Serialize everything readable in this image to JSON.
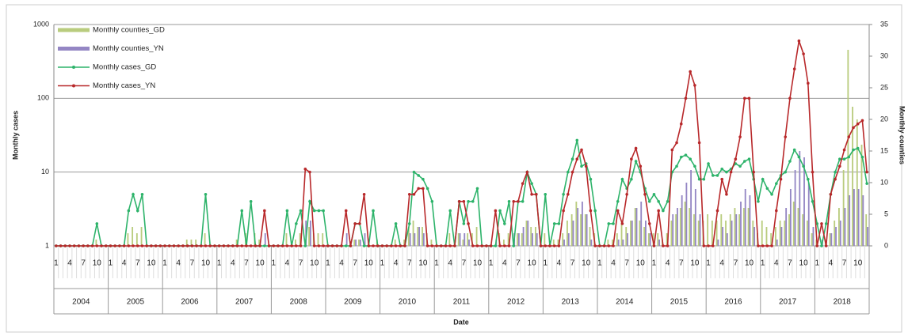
{
  "chart_data": {
    "type": "bar_line_combo",
    "x_label": "Date",
    "y_label": "Monthly cases",
    "y2_label": "Monthly counties",
    "y_scale": "log",
    "ylim": [
      1,
      1000
    ],
    "yticks": [
      1,
      10,
      100,
      1000
    ],
    "y2lim": [
      0,
      35
    ],
    "y2ticks": [
      0,
      5,
      10,
      15,
      20,
      25,
      30,
      35
    ],
    "grid": true,
    "legend": "upper left",
    "years": [
      "2004",
      "2005",
      "2006",
      "2007",
      "2008",
      "2009",
      "2010",
      "2011",
      "2012",
      "2013",
      "2014",
      "2015",
      "2016",
      "2017",
      "2018"
    ],
    "categories": [
      "1",
      null,
      null,
      "4",
      null,
      null,
      "7",
      null,
      null,
      "10",
      null,
      null,
      "1",
      null,
      null,
      "4",
      null,
      null,
      "7",
      null,
      null,
      "10",
      null,
      null,
      "1",
      null,
      null,
      "4",
      null,
      null,
      "7",
      null,
      null,
      "10",
      null,
      null,
      "1",
      null,
      null,
      "4",
      null,
      null,
      "7",
      null,
      null,
      "10",
      null,
      null,
      "1",
      null,
      null,
      "4",
      null,
      null,
      "7",
      null,
      null,
      "10",
      null,
      null,
      "1",
      null,
      null,
      "4",
      null,
      null,
      "7",
      null,
      null,
      "10",
      null,
      null,
      "1",
      null,
      null,
      "4",
      null,
      null,
      "7",
      null,
      null,
      "10",
      null,
      null,
      "1",
      null,
      null,
      "4",
      null,
      null,
      "7",
      null,
      null,
      "10",
      null,
      null,
      "1",
      null,
      null,
      "4",
      null,
      null,
      "7",
      null,
      null,
      "10",
      null,
      null,
      "1",
      null,
      null,
      "4",
      null,
      null,
      "7",
      null,
      null,
      "10",
      null,
      null,
      "1",
      null,
      null,
      "4",
      null,
      null,
      "7",
      null,
      null,
      "10",
      null,
      null,
      "1",
      null,
      null,
      "4",
      null,
      null,
      "7",
      null,
      null,
      "10",
      null,
      null,
      "1",
      null,
      null,
      "4",
      null,
      null,
      "7",
      null,
      null,
      "10",
      null,
      null,
      "1",
      null,
      null,
      "4",
      null,
      null,
      "7",
      null,
      null,
      "10",
      null,
      null,
      "1",
      null,
      null,
      "4",
      null,
      null,
      "7",
      null,
      null,
      "10",
      null,
      null
    ],
    "series": [
      {
        "name": "Monthly counties_GD",
        "kind": "bar",
        "axis": "y2",
        "color": "#b9cc7e",
        "values": [
          0,
          0,
          0,
          0,
          0,
          0,
          0,
          0,
          0,
          1,
          0,
          0,
          0,
          0,
          0,
          0,
          2,
          3,
          2,
          3,
          0,
          0,
          0,
          0,
          0,
          0,
          0,
          0,
          0,
          1,
          1,
          1,
          0,
          2,
          0,
          0,
          0,
          0,
          0,
          0,
          1,
          0,
          2,
          0,
          2,
          1,
          0,
          0,
          0,
          0,
          0,
          2,
          0,
          1,
          2,
          0,
          3,
          2,
          2,
          2,
          0,
          0,
          0,
          0,
          0,
          0,
          1,
          1,
          0,
          0,
          0,
          1,
          0,
          0,
          0,
          1,
          0,
          1,
          3,
          4,
          3,
          3,
          2,
          1,
          0,
          0,
          0,
          2,
          0,
          2,
          1,
          2,
          2,
          3,
          0,
          0,
          0,
          0,
          2,
          1,
          2,
          0,
          2,
          2,
          4,
          3,
          3,
          0,
          2,
          0,
          1,
          1,
          2,
          4,
          5,
          7,
          5,
          5,
          3,
          2,
          0,
          0,
          1,
          1,
          2,
          4,
          3,
          4,
          6,
          4,
          3,
          2,
          2,
          2,
          1,
          2,
          4,
          5,
          6,
          7,
          6,
          5,
          4,
          4,
          5,
          4,
          4,
          5,
          4,
          5,
          6,
          5,
          6,
          6,
          4,
          2,
          4,
          3,
          2,
          3,
          4,
          4,
          5,
          7,
          6,
          5,
          4,
          2,
          1,
          0,
          1,
          2,
          4,
          6,
          12,
          31,
          22,
          20,
          16,
          5
        ]
      },
      {
        "name": "Monthly counties_YN",
        "kind": "bar",
        "axis": "y2",
        "color": "#9486c4",
        "values": [
          0,
          0,
          0,
          0,
          0,
          0,
          0,
          0,
          0,
          0,
          0,
          0,
          0,
          0,
          0,
          0,
          0,
          0,
          0,
          0,
          0,
          0,
          0,
          0,
          0,
          0,
          0,
          0,
          0,
          0,
          0,
          0,
          0,
          0,
          0,
          0,
          0,
          0,
          0,
          0,
          0,
          0,
          0,
          0,
          0,
          0,
          2,
          0,
          0,
          0,
          0,
          0,
          0,
          0,
          0,
          4,
          4,
          0,
          0,
          0,
          0,
          0,
          0,
          0,
          2,
          0,
          1,
          1,
          2,
          0,
          0,
          0,
          0,
          0,
          0,
          0,
          0,
          0,
          2,
          2,
          3,
          2,
          0,
          0,
          0,
          0,
          0,
          0,
          0,
          2,
          2,
          1,
          0,
          0,
          0,
          0,
          0,
          1,
          0,
          0,
          0,
          2,
          2,
          3,
          4,
          2,
          2,
          0,
          0,
          0,
          0,
          0,
          1,
          2,
          4,
          6,
          7,
          5,
          1,
          0,
          0,
          0,
          0,
          0,
          1,
          1,
          2,
          4,
          6,
          7,
          4,
          2,
          0,
          1,
          0,
          0,
          5,
          6,
          8,
          10,
          12,
          9,
          5,
          0,
          0,
          0,
          1,
          3,
          2,
          4,
          5,
          7,
          9,
          8,
          3,
          0,
          0,
          0,
          0,
          1,
          3,
          6,
          9,
          12,
          15,
          14,
          10,
          3,
          0,
          1,
          0,
          2,
          3,
          4,
          6,
          8,
          9,
          9,
          8,
          3
        ]
      },
      {
        "name": "Monthly cases_GD",
        "kind": "line",
        "color": "#2db36a",
        "values": [
          1,
          1,
          1,
          1,
          1,
          1,
          1,
          1,
          1,
          2,
          1,
          1,
          1,
          1,
          1,
          1,
          3,
          5,
          3,
          5,
          1,
          1,
          1,
          1,
          1,
          1,
          1,
          1,
          1,
          1,
          1,
          1,
          1,
          5,
          1,
          1,
          1,
          1,
          1,
          1,
          1,
          3,
          1,
          4,
          1,
          1,
          1,
          1,
          1,
          1,
          1,
          3,
          1,
          2,
          3,
          1,
          4,
          3,
          3,
          3,
          1,
          1,
          1,
          1,
          1,
          1,
          2,
          2,
          1,
          1,
          3,
          1,
          1,
          1,
          1,
          2,
          1,
          1,
          2,
          10,
          9,
          8,
          6,
          4,
          1,
          1,
          1,
          3,
          1,
          4,
          2,
          4,
          4,
          6,
          1,
          1,
          1,
          1,
          3,
          2,
          4,
          1,
          4,
          4,
          10,
          7,
          5,
          1,
          5,
          1,
          2,
          2,
          5,
          10,
          15,
          27,
          12,
          13,
          8,
          3,
          1,
          1,
          2,
          2,
          4,
          8,
          6,
          8,
          14,
          10,
          6,
          4,
          5,
          4,
          3,
          4,
          10,
          12,
          16,
          17,
          15,
          12,
          8,
          8,
          13,
          9,
          9,
          11,
          10,
          11,
          13,
          12,
          14,
          15,
          8,
          4,
          8,
          6,
          5,
          7,
          9,
          10,
          14,
          20,
          16,
          12,
          8,
          4,
          2,
          1,
          2,
          5,
          10,
          15,
          15,
          16,
          20,
          21,
          16,
          7
        ]
      },
      {
        "name": "Monthly cases_YN",
        "kind": "line",
        "color": "#b8282a",
        "values": [
          1,
          1,
          1,
          1,
          1,
          1,
          1,
          1,
          1,
          1,
          1,
          1,
          1,
          1,
          1,
          1,
          1,
          1,
          1,
          1,
          1,
          1,
          1,
          1,
          1,
          1,
          1,
          1,
          1,
          1,
          1,
          1,
          1,
          1,
          1,
          1,
          1,
          1,
          1,
          1,
          1,
          1,
          1,
          1,
          1,
          1,
          3,
          1,
          1,
          1,
          1,
          1,
          1,
          1,
          1,
          11,
          10,
          1,
          1,
          1,
          1,
          1,
          1,
          1,
          3,
          1,
          2,
          2,
          5,
          1,
          1,
          1,
          1,
          1,
          1,
          1,
          1,
          1,
          5,
          5,
          6,
          6,
          1,
          1,
          1,
          1,
          1,
          1,
          1,
          4,
          4,
          2,
          1,
          1,
          1,
          1,
          1,
          3,
          1,
          1,
          1,
          4,
          4,
          7,
          10,
          5,
          5,
          1,
          1,
          1,
          1,
          1,
          3,
          5,
          10,
          15,
          20,
          12,
          3,
          1,
          1,
          1,
          1,
          1,
          3,
          2,
          5,
          15,
          21,
          12,
          5,
          2,
          1,
          3,
          1,
          1,
          20,
          25,
          45,
          100,
          230,
          150,
          25,
          1,
          1,
          1,
          3,
          8,
          5,
          10,
          15,
          30,
          100,
          100,
          10,
          1,
          1,
          1,
          1,
          3,
          8,
          30,
          100,
          250,
          600,
          400,
          160,
          10,
          1,
          2,
          1,
          5,
          8,
          12,
          20,
          30,
          40,
          45,
          50,
          10
        ]
      }
    ]
  }
}
